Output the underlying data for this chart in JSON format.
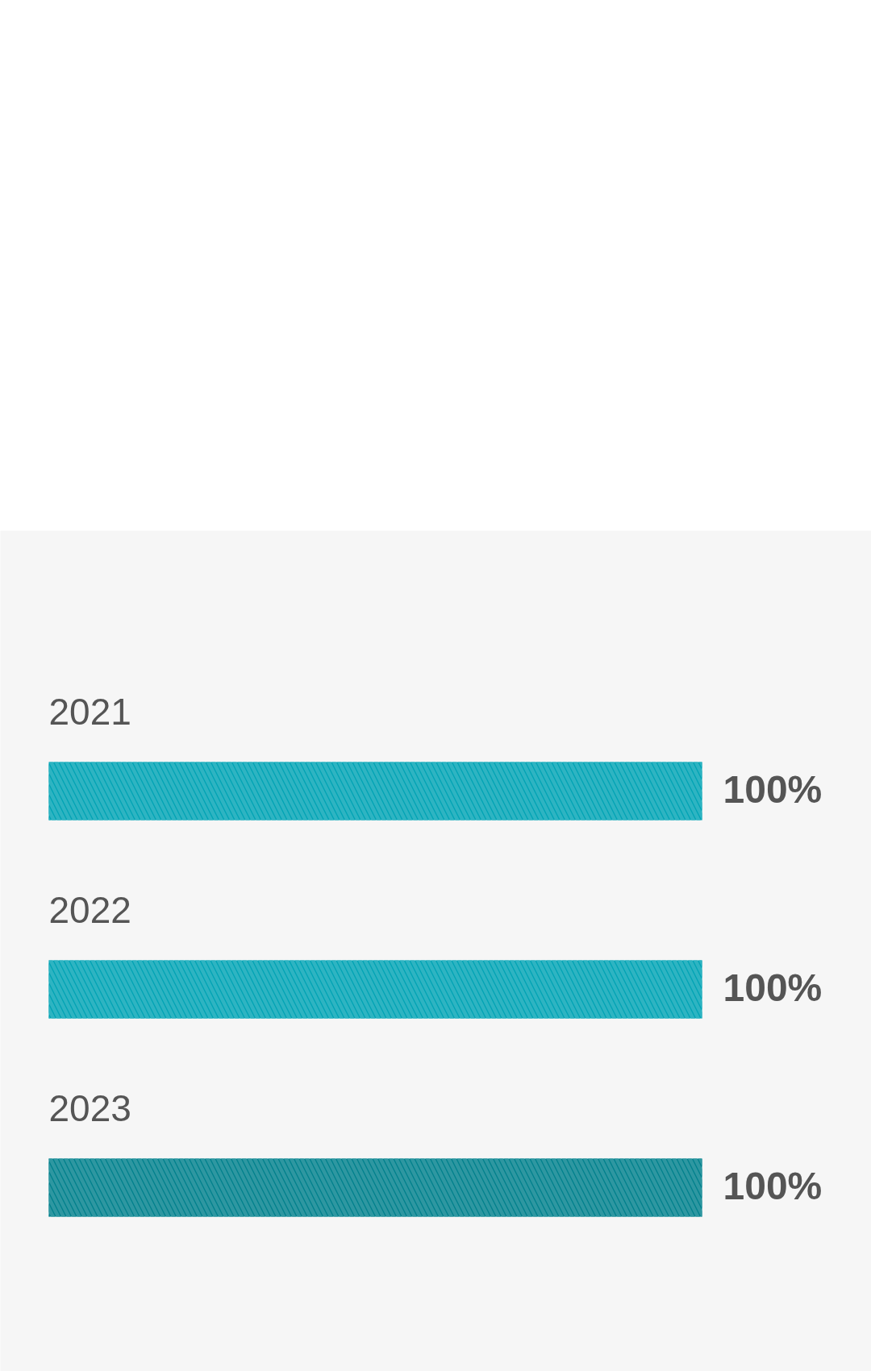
{
  "chart_data": {
    "type": "bar",
    "orientation": "horizontal",
    "categories": [
      "2021",
      "2022",
      "2023"
    ],
    "values": [
      100,
      100,
      100
    ],
    "colors": [
      "#00a3b4",
      "#00a3b4",
      "#00808c"
    ],
    "value_labels": [
      "100%",
      "100%",
      "100%"
    ]
  }
}
